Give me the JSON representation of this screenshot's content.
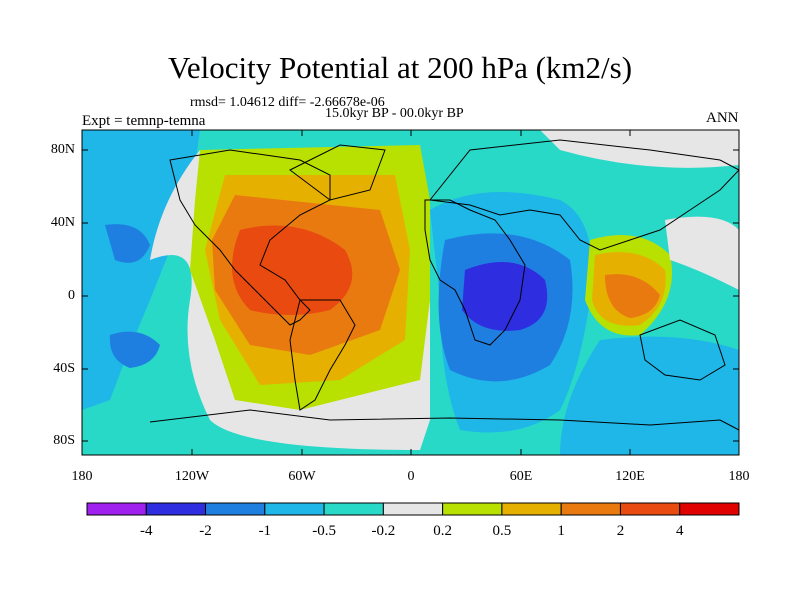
{
  "title": "Velocity Potential at 200 hPa (km2/s)",
  "stats": "rmsd= 1.04612 diff= -2.66678e-06",
  "period": "15.0kyr BP - 00.0kyr BP",
  "expt": "Expt = temnp-temna",
  "season": "ANN",
  "axes": {
    "y_ticks": [
      "80N",
      "40N",
      "0",
      "40S",
      "80S"
    ],
    "x_ticks": [
      "180",
      "120W",
      "60W",
      "0",
      "60E",
      "120E",
      "180"
    ]
  },
  "colorbar": {
    "labels": [
      "-4",
      "-2",
      "-1",
      "-0.5",
      "-0.2",
      "0.2",
      "0.5",
      "1",
      "2",
      "4"
    ],
    "colors": [
      "#a020f0",
      "#2e2ee0",
      "#1e7fe0",
      "#1fb6e8",
      "#29d9c8",
      "#e6e6e6",
      "#b8e000",
      "#e6b000",
      "#e87a10",
      "#e84a10",
      "#e00000"
    ]
  },
  "palette": {
    "land_outline": "#000000",
    "background_field": "#29d9c8"
  }
}
